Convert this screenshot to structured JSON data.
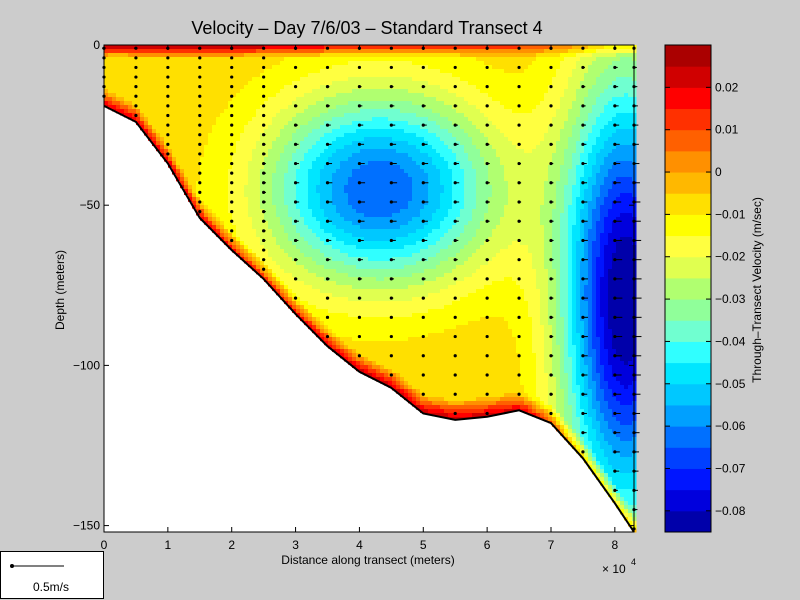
{
  "chart_data": {
    "type": "heatmap",
    "title": "Velocity – Day 7/6/03 – Standard Transect 4",
    "xlabel": "Distance along transect (meters)",
    "ylabel": "Depth (meters)",
    "x_multiplier_label": "× 10",
    "x_multiplier_exponent": "4",
    "xlim": [
      0,
      83000
    ],
    "ylim": [
      -152,
      0
    ],
    "xticks": [
      {
        "value": 0,
        "label": "0"
      },
      {
        "value": 10000,
        "label": "1"
      },
      {
        "value": 20000,
        "label": "2"
      },
      {
        "value": 30000,
        "label": "3"
      },
      {
        "value": 40000,
        "label": "4"
      },
      {
        "value": 50000,
        "label": "5"
      },
      {
        "value": 60000,
        "label": "6"
      },
      {
        "value": 70000,
        "label": "7"
      },
      {
        "value": 80000,
        "label": "8"
      }
    ],
    "yticks": [
      {
        "value": 0,
        "label": "0"
      },
      {
        "value": -50,
        "label": "−50"
      },
      {
        "value": -100,
        "label": "−100"
      },
      {
        "value": -150,
        "label": "−150"
      }
    ],
    "colorbar": {
      "label": "Through–Transect Velocity (m/sec)",
      "range": [
        -0.085,
        0.03
      ],
      "levels": [
        -0.085,
        -0.08,
        -0.075,
        -0.07,
        -0.065,
        -0.06,
        -0.055,
        -0.05,
        -0.045,
        -0.04,
        -0.035,
        -0.03,
        -0.025,
        -0.02,
        -0.015,
        -0.01,
        -0.005,
        0,
        0.005,
        0.01,
        0.015,
        0.02,
        0.025,
        0.03
      ],
      "colors": [
        "#0000aa",
        "#0000dd",
        "#0015ff",
        "#0040ff",
        "#0070ff",
        "#00a0ff",
        "#00c8ff",
        "#00e6ff",
        "#30ffff",
        "#70ffd0",
        "#90ff9a",
        "#b0ff70",
        "#e0ff50",
        "#ffff40",
        "#ffff00",
        "#ffe000",
        "#ffb800",
        "#ff9000",
        "#ff6000",
        "#ff3000",
        "#ff0000",
        "#d00000",
        "#aa0000"
      ],
      "ticks": [
        {
          "value": 0.02,
          "label": "0.02"
        },
        {
          "value": 0.01,
          "label": "0.01"
        },
        {
          "value": 0,
          "label": "0"
        },
        {
          "value": -0.01,
          "label": "−0.01"
        },
        {
          "value": -0.02,
          "label": "−0.02"
        },
        {
          "value": -0.03,
          "label": "−0.03"
        },
        {
          "value": -0.04,
          "label": "−0.04"
        },
        {
          "value": -0.05,
          "label": "−0.05"
        },
        {
          "value": -0.06,
          "label": "−0.06"
        },
        {
          "value": -0.07,
          "label": "−0.07"
        },
        {
          "value": -0.08,
          "label": "−0.08"
        }
      ]
    },
    "bottom_profile": [
      [
        0,
        -19
      ],
      [
        5000,
        -24
      ],
      [
        10000,
        -37
      ],
      [
        15000,
        -54
      ],
      [
        20000,
        -64
      ],
      [
        25000,
        -73
      ],
      [
        30000,
        -84
      ],
      [
        35000,
        -94
      ],
      [
        40000,
        -102
      ],
      [
        45000,
        -107
      ],
      [
        50000,
        -115
      ],
      [
        55000,
        -117
      ],
      [
        60000,
        -116
      ],
      [
        65000,
        -114
      ],
      [
        70000,
        -118
      ],
      [
        75000,
        -129
      ],
      [
        80000,
        -143
      ],
      [
        83000,
        -152
      ]
    ],
    "stations_x": [
      0,
      5000,
      10000,
      15000,
      20000,
      25000,
      30000,
      35000,
      40000,
      45000,
      50000,
      55000,
      60000,
      65000,
      70000,
      75000,
      80000,
      83000
    ],
    "scale_vector_label": "0.5m/s"
  }
}
